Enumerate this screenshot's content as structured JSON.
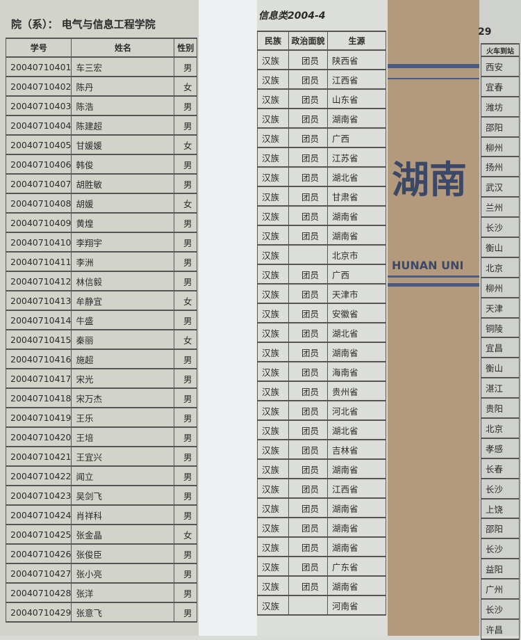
{
  "left_page": {
    "title": "院（系）：  电气与信息工程学院",
    "headers": [
      "学号",
      "姓名",
      "性别"
    ],
    "rows": [
      [
        "20040710401",
        "车三宏",
        "男"
      ],
      [
        "20040710402",
        "陈丹",
        "女"
      ],
      [
        "20040710403",
        "陈浩",
        "男"
      ],
      [
        "20040710404",
        "陈建超",
        "男"
      ],
      [
        "20040710405",
        "甘媛媛",
        "女"
      ],
      [
        "20040710406",
        "韩俊",
        "男"
      ],
      [
        "20040710407",
        "胡胜敏",
        "男"
      ],
      [
        "20040710408",
        "胡媛",
        "女"
      ],
      [
        "20040710409",
        "黄煌",
        "男"
      ],
      [
        "20040710410",
        "李翔宇",
        "男"
      ],
      [
        "20040710411",
        "李洲",
        "男"
      ],
      [
        "20040710412",
        "林信毅",
        "男"
      ],
      [
        "20040710413",
        "牟静宜",
        "女"
      ],
      [
        "20040710414",
        "牛盛",
        "男"
      ],
      [
        "20040710415",
        "秦丽",
        "女"
      ],
      [
        "20040710416",
        "施超",
        "男"
      ],
      [
        "20040710417",
        "宋光",
        "男"
      ],
      [
        "20040710418",
        "宋万杰",
        "男"
      ],
      [
        "20040710419",
        "王乐",
        "男"
      ],
      [
        "20040710420",
        "王培",
        "男"
      ],
      [
        "20040710421",
        "王宜兴",
        "男"
      ],
      [
        "20040710422",
        "闻立",
        "男"
      ],
      [
        "20040710423",
        "吴剑飞",
        "男"
      ],
      [
        "20040710424",
        "肖祥科",
        "男"
      ],
      [
        "20040710425",
        "张金晶",
        "女"
      ],
      [
        "20040710426",
        "张俊臣",
        "男"
      ],
      [
        "20040710427",
        "张小亮",
        "男"
      ],
      [
        "20040710428",
        "张洋",
        "男"
      ],
      [
        "20040710429",
        "张意飞",
        "男"
      ]
    ]
  },
  "middle_page": {
    "title": "信息类2004-4",
    "headers": [
      "民族",
      "政治面貌",
      "生源"
    ],
    "rows": [
      [
        "汉族",
        "团员",
        "陕西省"
      ],
      [
        "汉族",
        "团员",
        "江西省"
      ],
      [
        "汉族",
        "团员",
        "山东省"
      ],
      [
        "汉族",
        "团员",
        "湖南省"
      ],
      [
        "汉族",
        "团员",
        "广西"
      ],
      [
        "汉族",
        "团员",
        "江苏省"
      ],
      [
        "汉族",
        "团员",
        "湖北省"
      ],
      [
        "汉族",
        "团员",
        "甘肃省"
      ],
      [
        "汉族",
        "团员",
        "湖南省"
      ],
      [
        "汉族",
        "团员",
        "湖南省"
      ],
      [
        "汉族",
        "",
        "北京市"
      ],
      [
        "汉族",
        "团员",
        "广西"
      ],
      [
        "汉族",
        "团员",
        "天津市"
      ],
      [
        "汉族",
        "团员",
        "安徽省"
      ],
      [
        "汉族",
        "团员",
        "湖北省"
      ],
      [
        "汉族",
        "团员",
        "湖南省"
      ],
      [
        "汉族",
        "团员",
        "海南省"
      ],
      [
        "汉族",
        "团员",
        "贵州省"
      ],
      [
        "汉族",
        "团员",
        "河北省"
      ],
      [
        "汉族",
        "团员",
        "湖北省"
      ],
      [
        "汉族",
        "团员",
        "吉林省"
      ],
      [
        "汉族",
        "团员",
        "湖南省"
      ],
      [
        "汉族",
        "团员",
        "江西省"
      ],
      [
        "汉族",
        "团员",
        "湖南省"
      ],
      [
        "汉族",
        "团员",
        "湖南省"
      ],
      [
        "汉族",
        "团员",
        "湖南省"
      ],
      [
        "汉族",
        "团员",
        "广东省"
      ],
      [
        "汉族",
        "团员",
        "湖南省"
      ],
      [
        "汉族",
        "",
        "河南省"
      ]
    ]
  },
  "envelope": {
    "logo_text": "湖南",
    "logo_subtext": "HUNAN UNI",
    "brand_color": "#3b4868"
  },
  "right_page": {
    "page_number": "29",
    "header": "火车到站",
    "rows": [
      "西安",
      "宜春",
      "潍坊",
      "邵阳",
      "柳州",
      "扬州",
      "武汉",
      "兰州",
      "长沙",
      "衡山",
      "北京",
      "柳州",
      "天津",
      "铜陵",
      "宜昌",
      "衡山",
      "湛江",
      "贵阳",
      "北京",
      "孝感",
      "长春",
      "长沙",
      "上饶",
      "邵阳",
      "长沙",
      "益阳",
      "广州",
      "长沙",
      "许昌"
    ]
  }
}
